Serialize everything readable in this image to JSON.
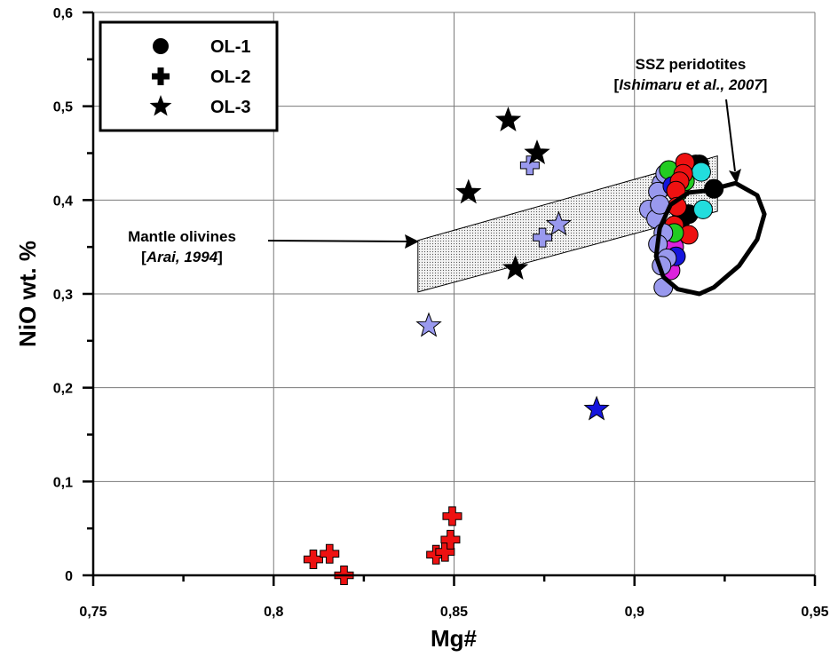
{
  "chart_data": {
    "type": "scatter",
    "xlabel": "Mg#",
    "ylabel": "NiO wt. %",
    "xlim": [
      0.75,
      0.95
    ],
    "ylim": [
      0,
      0.6
    ],
    "x_ticks": [
      "0,75",
      "0,8",
      "0,85",
      "0,9",
      "0,95"
    ],
    "y_ticks": [
      "0",
      "0,1",
      "0,2",
      "0,3",
      "0,4",
      "0,5",
      "0,6"
    ],
    "grid": true,
    "legend": {
      "placement": "top-left",
      "entries": [
        {
          "label": "OL-1",
          "marker": "circle"
        },
        {
          "label": "OL-2",
          "marker": "plus"
        },
        {
          "label": "OL-3",
          "marker": "star"
        }
      ]
    },
    "colors": {
      "black": "#000000",
      "red": "#ee1111",
      "lavender": "#9999ee",
      "blue": "#1515dd",
      "green": "#22cc22",
      "magenta": "#dd22dd",
      "cyan": "#22dddd"
    },
    "annotations": {
      "mantle": {
        "line1": "Mantle olivines",
        "line2_pre": "[",
        "line2_italic": "Arai, 1994",
        "line2_post": "]"
      },
      "ssz": {
        "line1": "SSZ peridotites",
        "line2_pre": "[",
        "line2_italic": "Ishimaru et al., 2007",
        "line2_post": "]"
      }
    },
    "mantle_field": [
      [
        0.84,
        0.302
      ],
      [
        0.923,
        0.388
      ],
      [
        0.923,
        0.447
      ],
      [
        0.84,
        0.357
      ]
    ],
    "ssz_field": [
      [
        0.92,
        0.41
      ],
      [
        0.928,
        0.418
      ],
      [
        0.934,
        0.405
      ],
      [
        0.936,
        0.385
      ],
      [
        0.934,
        0.358
      ],
      [
        0.929,
        0.33
      ],
      [
        0.922,
        0.307
      ],
      [
        0.918,
        0.3
      ],
      [
        0.912,
        0.305
      ],
      [
        0.908,
        0.318
      ],
      [
        0.906,
        0.34
      ],
      [
        0.907,
        0.37
      ],
      [
        0.91,
        0.395
      ],
      [
        0.915,
        0.408
      ]
    ],
    "series": [
      {
        "name": "OL-1",
        "marker": "circle",
        "points": [
          {
            "x": 0.9075,
            "y": 0.418,
            "color": "lavender"
          },
          {
            "x": 0.9065,
            "y": 0.409,
            "color": "lavender"
          },
          {
            "x": 0.9085,
            "y": 0.428,
            "color": "lavender"
          },
          {
            "x": 0.9095,
            "y": 0.432,
            "color": "green"
          },
          {
            "x": 0.9105,
            "y": 0.415,
            "color": "blue"
          },
          {
            "x": 0.912,
            "y": 0.408,
            "color": "green"
          },
          {
            "x": 0.914,
            "y": 0.42,
            "color": "green"
          },
          {
            "x": 0.913,
            "y": 0.38,
            "color": "black"
          },
          {
            "x": 0.915,
            "y": 0.385,
            "color": "black"
          },
          {
            "x": 0.918,
            "y": 0.438,
            "color": "black"
          },
          {
            "x": 0.917,
            "y": 0.438,
            "color": "black"
          },
          {
            "x": 0.922,
            "y": 0.412,
            "color": "black"
          },
          {
            "x": 0.9185,
            "y": 0.43,
            "color": "cyan"
          },
          {
            "x": 0.919,
            "y": 0.39,
            "color": "cyan"
          },
          {
            "x": 0.914,
            "y": 0.44,
            "color": "red"
          },
          {
            "x": 0.9135,
            "y": 0.428,
            "color": "red"
          },
          {
            "x": 0.9125,
            "y": 0.42,
            "color": "red"
          },
          {
            "x": 0.9115,
            "y": 0.41,
            "color": "red"
          },
          {
            "x": 0.9118,
            "y": 0.393,
            "color": "red"
          },
          {
            "x": 0.911,
            "y": 0.373,
            "color": "red"
          },
          {
            "x": 0.915,
            "y": 0.363,
            "color": "red"
          },
          {
            "x": 0.911,
            "y": 0.35,
            "color": "magenta"
          },
          {
            "x": 0.91,
            "y": 0.325,
            "color": "magenta"
          },
          {
            "x": 0.9115,
            "y": 0.34,
            "color": "blue"
          },
          {
            "x": 0.911,
            "y": 0.365,
            "color": "green"
          },
          {
            "x": 0.904,
            "y": 0.39,
            "color": "lavender"
          },
          {
            "x": 0.906,
            "y": 0.38,
            "color": "lavender"
          },
          {
            "x": 0.907,
            "y": 0.395,
            "color": "lavender"
          },
          {
            "x": 0.908,
            "y": 0.365,
            "color": "lavender"
          },
          {
            "x": 0.9065,
            "y": 0.353,
            "color": "lavender"
          },
          {
            "x": 0.909,
            "y": 0.338,
            "color": "lavender"
          },
          {
            "x": 0.9075,
            "y": 0.33,
            "color": "lavender"
          },
          {
            "x": 0.908,
            "y": 0.307,
            "color": "lavender"
          }
        ]
      },
      {
        "name": "OL-2",
        "marker": "plus",
        "points": [
          {
            "x": 0.871,
            "y": 0.437,
            "color": "lavender"
          },
          {
            "x": 0.8745,
            "y": 0.36,
            "color": "lavender"
          },
          {
            "x": 0.811,
            "y": 0.017,
            "color": "red"
          },
          {
            "x": 0.8155,
            "y": 0.023,
            "color": "red"
          },
          {
            "x": 0.8195,
            "y": 0.0,
            "color": "red"
          },
          {
            "x": 0.845,
            "y": 0.022,
            "color": "red"
          },
          {
            "x": 0.8475,
            "y": 0.025,
            "color": "red"
          },
          {
            "x": 0.849,
            "y": 0.038,
            "color": "red"
          },
          {
            "x": 0.8495,
            "y": 0.063,
            "color": "red"
          }
        ]
      },
      {
        "name": "OL-3",
        "marker": "star",
        "points": [
          {
            "x": 0.865,
            "y": 0.485,
            "color": "black"
          },
          {
            "x": 0.873,
            "y": 0.45,
            "color": "black"
          },
          {
            "x": 0.854,
            "y": 0.408,
            "color": "black"
          },
          {
            "x": 0.867,
            "y": 0.327,
            "color": "black"
          },
          {
            "x": 0.879,
            "y": 0.374,
            "color": "lavender"
          },
          {
            "x": 0.843,
            "y": 0.266,
            "color": "lavender"
          },
          {
            "x": 0.8895,
            "y": 0.177,
            "color": "blue"
          }
        ]
      }
    ]
  }
}
